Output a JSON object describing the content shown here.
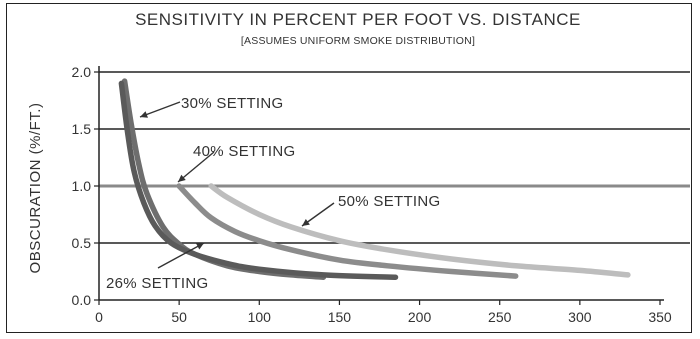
{
  "chart_data": {
    "type": "line",
    "title": "SENSITIVITY IN PERCENT PER FOOT VS. DISTANCE",
    "subtitle": "[ASSUMES UNIFORM SMOKE DISTRIBUTION]",
    "xlabel": "",
    "ylabel": "OBSCURATION (%/FT.)",
    "xlim": [
      0,
      350
    ],
    "ylim": [
      0,
      2.0
    ],
    "x_ticks": [
      "0",
      "50",
      "100",
      "150",
      "200",
      "250",
      "300",
      "350"
    ],
    "y_ticks": [
      "0.0",
      "0.5",
      "1.0",
      "1.5",
      "2.0"
    ],
    "grid": "horizontal",
    "series": [
      {
        "name": "30% SETTING",
        "color": "#6e6e6e",
        "x": [
          16,
          20,
          25,
          30,
          40,
          50,
          60,
          80,
          100,
          120,
          140
        ],
        "y": [
          1.92,
          1.55,
          1.18,
          0.93,
          0.64,
          0.49,
          0.4,
          0.3,
          0.25,
          0.22,
          0.2
        ]
      },
      {
        "name": "26% SETTING",
        "color": "#5a5a5a",
        "x": [
          14,
          18,
          22,
          28,
          35,
          45,
          60,
          80,
          100,
          140,
          185
        ],
        "y": [
          1.9,
          1.45,
          1.12,
          0.85,
          0.65,
          0.5,
          0.4,
          0.32,
          0.27,
          0.22,
          0.2
        ]
      },
      {
        "name": "40% SETTING",
        "color": "#8c8c8c",
        "x": [
          50,
          60,
          70,
          85,
          100,
          120,
          150,
          180,
          220,
          260
        ],
        "y": [
          1.0,
          0.85,
          0.72,
          0.6,
          0.52,
          0.44,
          0.35,
          0.3,
          0.25,
          0.21
        ]
      },
      {
        "name": "50% SETTING",
        "color": "#bdbdbd",
        "x": [
          70,
          80,
          100,
          120,
          150,
          180,
          220,
          260,
          300,
          330
        ],
        "y": [
          1.0,
          0.9,
          0.75,
          0.64,
          0.52,
          0.44,
          0.36,
          0.3,
          0.26,
          0.22
        ]
      }
    ],
    "annotations": [
      {
        "text": "30% SETTING"
      },
      {
        "text": "40% SETTING"
      },
      {
        "text": "50% SETTING"
      },
      {
        "text": "26% SETTING"
      }
    ]
  }
}
